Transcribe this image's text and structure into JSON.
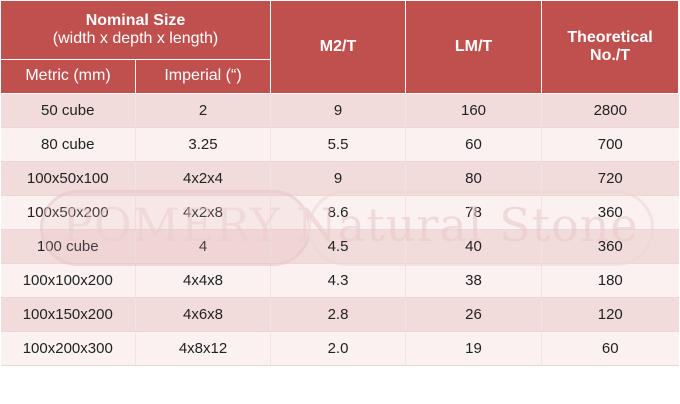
{
  "table": {
    "header": {
      "nominal_title": "Nominal Size",
      "nominal_sub": "(width x depth x length)",
      "metric": "Metric (mm)",
      "imperial": "Imperial (“)",
      "m2t": "M2/T",
      "lmt": "LM/T",
      "theoretical": "Theoretical No./T"
    },
    "rows": [
      {
        "metric": "50 cube",
        "imperial": "2",
        "m2t": "9",
        "lmt": "160",
        "theo": "2800"
      },
      {
        "metric": "80 cube",
        "imperial": "3.25",
        "m2t": "5.5",
        "lmt": "60",
        "theo": "700"
      },
      {
        "metric": "100x50x100",
        "imperial": "4x2x4",
        "m2t": "9",
        "lmt": "80",
        "theo": "720"
      },
      {
        "metric": "100x50x200",
        "imperial": "4x2x8",
        "m2t": "8.6",
        "lmt": "78",
        "theo": "360"
      },
      {
        "metric": "100 cube",
        "imperial": "4",
        "m2t": "4.5",
        "lmt": "40",
        "theo": "360"
      },
      {
        "metric": "100x100x200",
        "imperial": "4x4x8",
        "m2t": "4.3",
        "lmt": "38",
        "theo": "180"
      },
      {
        "metric": "100x150x200",
        "imperial": "4x6x8",
        "m2t": "2.8",
        "lmt": "26",
        "theo": "120"
      },
      {
        "metric": "100x200x300",
        "imperial": "4x8x12",
        "m2t": "2.0",
        "lmt": "19",
        "theo": "60"
      }
    ]
  },
  "watermark": {
    "text": "POMERY Natural Stone"
  },
  "colors": {
    "header_bg": "#c0504d",
    "row_odd": "#f2dcdb",
    "row_even": "#fbf1f0"
  }
}
